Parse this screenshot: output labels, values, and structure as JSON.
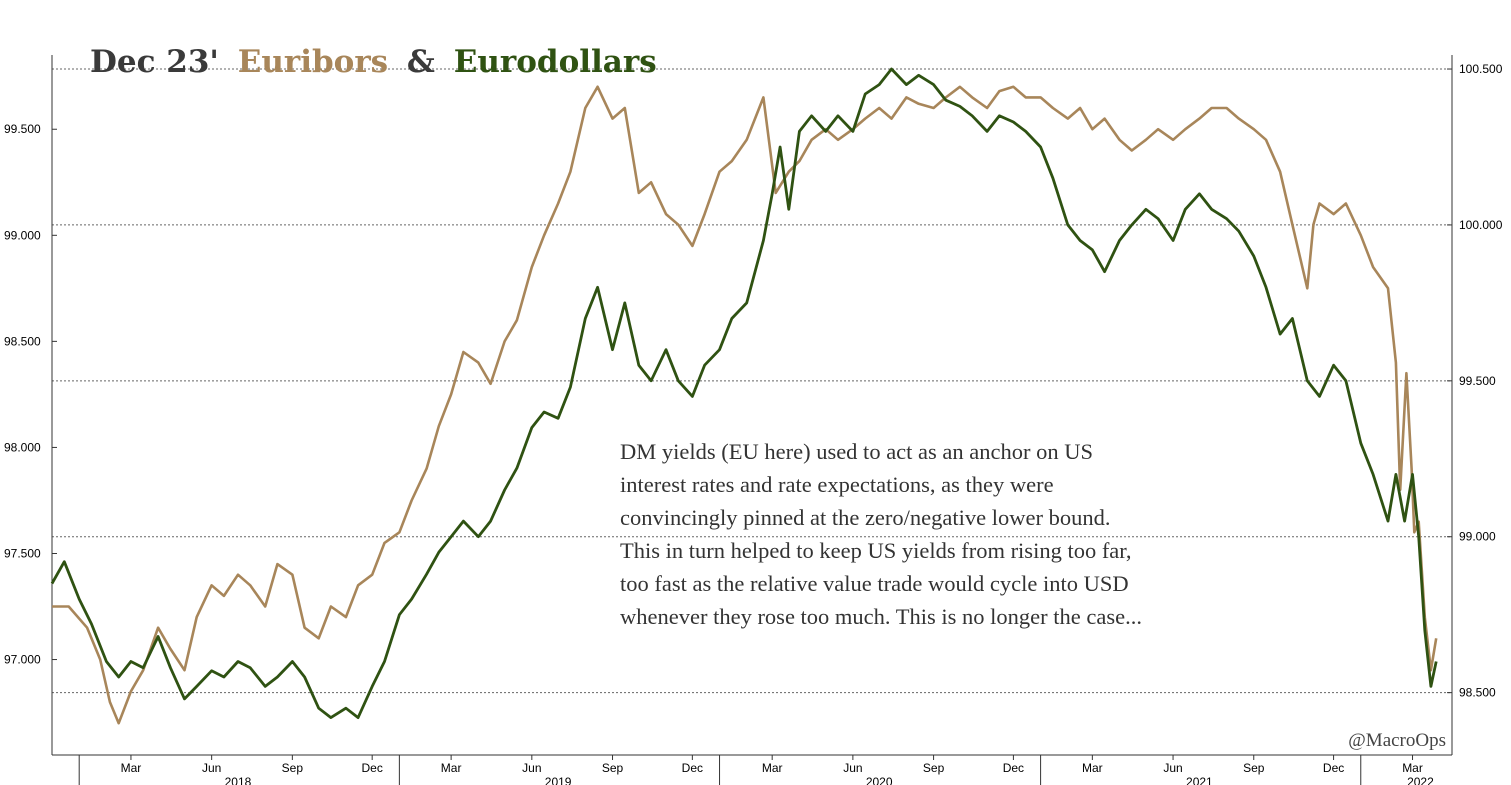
{
  "chart_data": {
    "type": "line",
    "title": {
      "part1": "Dec 23'",
      "part2": "Euribors",
      "part3": "&",
      "part4": "Eurodollars"
    },
    "colors": {
      "title_dark": "#3a3a3a",
      "euribor": "#a8865a",
      "eurodollar": "#2f5212",
      "grid": "#666666",
      "axis": "#333333"
    },
    "x_range": [
      "2017-12-01",
      "2022-04-15"
    ],
    "left_axis": {
      "ylim": [
        96.55,
        99.85
      ],
      "ticks": [
        97.0,
        97.5,
        98.0,
        98.5,
        99.0,
        99.5
      ],
      "labels": [
        "97.000",
        "97.500",
        "98.000",
        "98.500",
        "99.000",
        "99.500"
      ]
    },
    "right_axis": {
      "ylim": [
        98.3,
        100.545
      ],
      "ticks": [
        98.5,
        99.0,
        99.5,
        100.0,
        100.5
      ],
      "labels": [
        "98.500",
        "99.000",
        "99.500",
        "100.000",
        "100.500"
      ]
    },
    "month_ticks": [
      {
        "date": "2018-03-01",
        "label": "Mar"
      },
      {
        "date": "2018-06-01",
        "label": "Jun"
      },
      {
        "date": "2018-09-01",
        "label": "Sep"
      },
      {
        "date": "2018-12-01",
        "label": "Dec"
      },
      {
        "date": "2019-03-01",
        "label": "Mar"
      },
      {
        "date": "2019-06-01",
        "label": "Jun"
      },
      {
        "date": "2019-09-01",
        "label": "Sep"
      },
      {
        "date": "2019-12-01",
        "label": "Dec"
      },
      {
        "date": "2020-03-01",
        "label": "Mar"
      },
      {
        "date": "2020-06-01",
        "label": "Jun"
      },
      {
        "date": "2020-09-01",
        "label": "Sep"
      },
      {
        "date": "2020-12-01",
        "label": "Dec"
      },
      {
        "date": "2021-03-01",
        "label": "Mar"
      },
      {
        "date": "2021-06-01",
        "label": "Jun"
      },
      {
        "date": "2021-09-01",
        "label": "Sep"
      },
      {
        "date": "2021-12-01",
        "label": "Dec"
      },
      {
        "date": "2022-03-01",
        "label": "Mar"
      }
    ],
    "year_ticks": [
      {
        "date": "2018-07-01",
        "label": "2018"
      },
      {
        "date": "2019-07-01",
        "label": "2019"
      },
      {
        "date": "2020-07-01",
        "label": "2020"
      },
      {
        "date": "2021-07-01",
        "label": "2021"
      },
      {
        "date": "2022-03-10",
        "label": "2022"
      }
    ],
    "series": [
      {
        "name": "Euribors",
        "axis": "left",
        "points": [
          [
            "2017-12-01",
            97.25
          ],
          [
            "2017-12-20",
            97.25
          ],
          [
            "2018-01-10",
            97.15
          ],
          [
            "2018-01-25",
            97.0
          ],
          [
            "2018-02-05",
            96.8
          ],
          [
            "2018-02-15",
            96.7
          ],
          [
            "2018-03-01",
            96.85
          ],
          [
            "2018-03-15",
            96.95
          ],
          [
            "2018-04-01",
            97.15
          ],
          [
            "2018-04-15",
            97.05
          ],
          [
            "2018-05-01",
            96.95
          ],
          [
            "2018-05-15",
            97.2
          ],
          [
            "2018-06-01",
            97.35
          ],
          [
            "2018-06-15",
            97.3
          ],
          [
            "2018-07-01",
            97.4
          ],
          [
            "2018-07-15",
            97.35
          ],
          [
            "2018-08-01",
            97.25
          ],
          [
            "2018-08-15",
            97.45
          ],
          [
            "2018-09-01",
            97.4
          ],
          [
            "2018-09-15",
            97.15
          ],
          [
            "2018-10-01",
            97.1
          ],
          [
            "2018-10-15",
            97.25
          ],
          [
            "2018-11-01",
            97.2
          ],
          [
            "2018-11-15",
            97.35
          ],
          [
            "2018-12-01",
            97.4
          ],
          [
            "2018-12-15",
            97.55
          ],
          [
            "2019-01-01",
            97.6
          ],
          [
            "2019-01-15",
            97.75
          ],
          [
            "2019-02-01",
            97.9
          ],
          [
            "2019-02-15",
            98.1
          ],
          [
            "2019-03-01",
            98.25
          ],
          [
            "2019-03-15",
            98.45
          ],
          [
            "2019-04-01",
            98.4
          ],
          [
            "2019-04-15",
            98.3
          ],
          [
            "2019-05-01",
            98.5
          ],
          [
            "2019-05-15",
            98.6
          ],
          [
            "2019-06-01",
            98.85
          ],
          [
            "2019-06-15",
            99.0
          ],
          [
            "2019-07-01",
            99.15
          ],
          [
            "2019-07-15",
            99.3
          ],
          [
            "2019-08-01",
            99.6
          ],
          [
            "2019-08-15",
            99.7
          ],
          [
            "2019-09-01",
            99.55
          ],
          [
            "2019-09-15",
            99.6
          ],
          [
            "2019-10-01",
            99.2
          ],
          [
            "2019-10-15",
            99.25
          ],
          [
            "2019-11-01",
            99.1
          ],
          [
            "2019-11-15",
            99.05
          ],
          [
            "2019-12-01",
            98.95
          ],
          [
            "2019-12-15",
            99.1
          ],
          [
            "2020-01-01",
            99.3
          ],
          [
            "2020-01-15",
            99.35
          ],
          [
            "2020-02-01",
            99.45
          ],
          [
            "2020-02-20",
            99.65
          ],
          [
            "2020-03-05",
            99.2
          ],
          [
            "2020-03-20",
            99.3
          ],
          [
            "2020-04-01",
            99.35
          ],
          [
            "2020-04-15",
            99.45
          ],
          [
            "2020-05-01",
            99.5
          ],
          [
            "2020-05-15",
            99.45
          ],
          [
            "2020-06-01",
            99.5
          ],
          [
            "2020-06-15",
            99.55
          ],
          [
            "2020-07-01",
            99.6
          ],
          [
            "2020-07-15",
            99.55
          ],
          [
            "2020-08-01",
            99.65
          ],
          [
            "2020-08-15",
            99.62
          ],
          [
            "2020-09-01",
            99.6
          ],
          [
            "2020-09-15",
            99.65
          ],
          [
            "2020-10-01",
            99.7
          ],
          [
            "2020-10-15",
            99.65
          ],
          [
            "2020-11-01",
            99.6
          ],
          [
            "2020-11-15",
            99.68
          ],
          [
            "2020-12-01",
            99.7
          ],
          [
            "2020-12-15",
            99.65
          ],
          [
            "2021-01-01",
            99.65
          ],
          [
            "2021-01-15",
            99.6
          ],
          [
            "2021-02-01",
            99.55
          ],
          [
            "2021-02-15",
            99.6
          ],
          [
            "2021-03-01",
            99.5
          ],
          [
            "2021-03-15",
            99.55
          ],
          [
            "2021-04-01",
            99.45
          ],
          [
            "2021-04-15",
            99.4
          ],
          [
            "2021-05-01",
            99.45
          ],
          [
            "2021-05-15",
            99.5
          ],
          [
            "2021-06-01",
            99.45
          ],
          [
            "2021-06-15",
            99.5
          ],
          [
            "2021-07-01",
            99.55
          ],
          [
            "2021-07-15",
            99.6
          ],
          [
            "2021-08-01",
            99.6
          ],
          [
            "2021-08-15",
            99.55
          ],
          [
            "2021-09-01",
            99.5
          ],
          [
            "2021-09-15",
            99.45
          ],
          [
            "2021-10-01",
            99.3
          ],
          [
            "2021-10-15",
            99.05
          ],
          [
            "2021-11-01",
            98.75
          ],
          [
            "2021-11-08",
            99.05
          ],
          [
            "2021-11-15",
            99.15
          ],
          [
            "2021-12-01",
            99.1
          ],
          [
            "2021-12-15",
            99.15
          ],
          [
            "2022-01-01",
            99.0
          ],
          [
            "2022-01-15",
            98.85
          ],
          [
            "2022-02-01",
            98.75
          ],
          [
            "2022-02-10",
            98.4
          ],
          [
            "2022-02-15",
            97.8
          ],
          [
            "2022-02-22",
            98.35
          ],
          [
            "2022-02-28",
            97.9
          ],
          [
            "2022-03-03",
            97.6
          ],
          [
            "2022-03-08",
            97.65
          ],
          [
            "2022-03-15",
            97.2
          ],
          [
            "2022-03-22",
            96.95
          ],
          [
            "2022-03-28",
            97.1
          ]
        ]
      },
      {
        "name": "Eurodollars",
        "axis": "right",
        "points": [
          [
            "2017-12-01",
            98.85
          ],
          [
            "2017-12-15",
            98.92
          ],
          [
            "2018-01-01",
            98.8
          ],
          [
            "2018-01-15",
            98.72
          ],
          [
            "2018-02-01",
            98.6
          ],
          [
            "2018-02-15",
            98.55
          ],
          [
            "2018-03-01",
            98.6
          ],
          [
            "2018-03-15",
            98.58
          ],
          [
            "2018-04-01",
            98.68
          ],
          [
            "2018-04-15",
            98.58
          ],
          [
            "2018-05-01",
            98.48
          ],
          [
            "2018-05-15",
            98.52
          ],
          [
            "2018-06-01",
            98.57
          ],
          [
            "2018-06-15",
            98.55
          ],
          [
            "2018-07-01",
            98.6
          ],
          [
            "2018-07-15",
            98.58
          ],
          [
            "2018-08-01",
            98.52
          ],
          [
            "2018-08-15",
            98.55
          ],
          [
            "2018-09-01",
            98.6
          ],
          [
            "2018-09-15",
            98.55
          ],
          [
            "2018-10-01",
            98.45
          ],
          [
            "2018-10-15",
            98.42
          ],
          [
            "2018-11-01",
            98.45
          ],
          [
            "2018-11-15",
            98.42
          ],
          [
            "2018-12-01",
            98.52
          ],
          [
            "2018-12-15",
            98.6
          ],
          [
            "2019-01-01",
            98.75
          ],
          [
            "2019-01-15",
            98.8
          ],
          [
            "2019-02-01",
            98.88
          ],
          [
            "2019-02-15",
            98.95
          ],
          [
            "2019-03-01",
            99.0
          ],
          [
            "2019-03-15",
            99.05
          ],
          [
            "2019-04-01",
            99.0
          ],
          [
            "2019-04-15",
            99.05
          ],
          [
            "2019-05-01",
            99.15
          ],
          [
            "2019-05-15",
            99.22
          ],
          [
            "2019-06-01",
            99.35
          ],
          [
            "2019-06-15",
            99.4
          ],
          [
            "2019-07-01",
            99.38
          ],
          [
            "2019-07-15",
            99.48
          ],
          [
            "2019-08-01",
            99.7
          ],
          [
            "2019-08-15",
            99.8
          ],
          [
            "2019-09-01",
            99.6
          ],
          [
            "2019-09-15",
            99.75
          ],
          [
            "2019-10-01",
            99.55
          ],
          [
            "2019-10-15",
            99.5
          ],
          [
            "2019-11-01",
            99.6
          ],
          [
            "2019-11-15",
            99.5
          ],
          [
            "2019-12-01",
            99.45
          ],
          [
            "2019-12-15",
            99.55
          ],
          [
            "2020-01-01",
            99.6
          ],
          [
            "2020-01-15",
            99.7
          ],
          [
            "2020-02-01",
            99.75
          ],
          [
            "2020-02-20",
            99.95
          ],
          [
            "2020-03-01",
            100.1
          ],
          [
            "2020-03-10",
            100.25
          ],
          [
            "2020-03-20",
            100.05
          ],
          [
            "2020-04-01",
            100.3
          ],
          [
            "2020-04-15",
            100.35
          ],
          [
            "2020-05-01",
            100.3
          ],
          [
            "2020-05-15",
            100.35
          ],
          [
            "2020-06-01",
            100.3
          ],
          [
            "2020-06-15",
            100.42
          ],
          [
            "2020-07-01",
            100.45
          ],
          [
            "2020-07-15",
            100.5
          ],
          [
            "2020-08-01",
            100.45
          ],
          [
            "2020-08-15",
            100.48
          ],
          [
            "2020-09-01",
            100.45
          ],
          [
            "2020-09-15",
            100.4
          ],
          [
            "2020-10-01",
            100.38
          ],
          [
            "2020-10-15",
            100.35
          ],
          [
            "2020-11-01",
            100.3
          ],
          [
            "2020-11-15",
            100.35
          ],
          [
            "2020-12-01",
            100.33
          ],
          [
            "2020-12-15",
            100.3
          ],
          [
            "2021-01-01",
            100.25
          ],
          [
            "2021-01-15",
            100.15
          ],
          [
            "2021-02-01",
            100.0
          ],
          [
            "2021-02-15",
            99.95
          ],
          [
            "2021-03-01",
            99.92
          ],
          [
            "2021-03-15",
            99.85
          ],
          [
            "2021-04-01",
            99.95
          ],
          [
            "2021-04-15",
            100.0
          ],
          [
            "2021-05-01",
            100.05
          ],
          [
            "2021-05-15",
            100.02
          ],
          [
            "2021-06-01",
            99.95
          ],
          [
            "2021-06-15",
            100.05
          ],
          [
            "2021-07-01",
            100.1
          ],
          [
            "2021-07-15",
            100.05
          ],
          [
            "2021-08-01",
            100.02
          ],
          [
            "2021-08-15",
            99.98
          ],
          [
            "2021-09-01",
            99.9
          ],
          [
            "2021-09-15",
            99.8
          ],
          [
            "2021-10-01",
            99.65
          ],
          [
            "2021-10-15",
            99.7
          ],
          [
            "2021-11-01",
            99.5
          ],
          [
            "2021-11-15",
            99.45
          ],
          [
            "2021-12-01",
            99.55
          ],
          [
            "2021-12-15",
            99.5
          ],
          [
            "2022-01-01",
            99.3
          ],
          [
            "2022-01-15",
            99.2
          ],
          [
            "2022-02-01",
            99.05
          ],
          [
            "2022-02-10",
            99.2
          ],
          [
            "2022-02-20",
            99.05
          ],
          [
            "2022-03-01",
            99.2
          ],
          [
            "2022-03-08",
            99.0
          ],
          [
            "2022-03-15",
            98.7
          ],
          [
            "2022-03-22",
            98.52
          ],
          [
            "2022-03-28",
            98.6
          ]
        ]
      }
    ],
    "annotation": [
      "DM yields (EU here) used to act as an anchor on US",
      "interest rates and rate expectations, as they were",
      "convincingly pinned at the zero/negative lower bound.",
      "This in turn helped to keep US yields from rising too far,",
      "too fast as the relative value trade would cycle into USD",
      "whenever they rose too much. This is no longer the case..."
    ],
    "credit": "@MacroOps"
  }
}
